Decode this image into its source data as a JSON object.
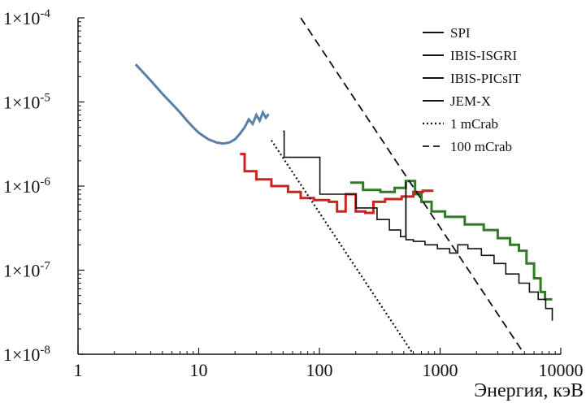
{
  "chart_data": {
    "type": "line",
    "title": "",
    "xlabel": "Энергия, кэВ",
    "ylabel": "",
    "xscale": "log",
    "yscale": "log",
    "xlim": [
      1,
      10000
    ],
    "ylim": [
      1e-08,
      0.0001
    ],
    "x_ticks": [
      "1",
      "10",
      "100",
      "1000",
      "10000"
    ],
    "y_ticks": [
      {
        "mantissa": "1×10",
        "exp": "-8"
      },
      {
        "mantissa": "1×10",
        "exp": "-7"
      },
      {
        "mantissa": "1×10",
        "exp": "-6"
      },
      {
        "mantissa": "1×10",
        "exp": "-5"
      },
      {
        "mantissa": "1×10",
        "exp": "-4"
      }
    ],
    "legend_position": "top-right",
    "series": [
      {
        "name": "SPI",
        "color": "#2e7d22",
        "style": "step",
        "points": [
          [
            180,
            1.1e-06
          ],
          [
            230,
            9e-07
          ],
          [
            320,
            8.5e-07
          ],
          [
            420,
            9.5e-07
          ],
          [
            520,
            1.15e-06
          ],
          [
            620,
            8e-07
          ],
          [
            700,
            6.5e-07
          ],
          [
            850,
            5e-07
          ],
          [
            1100,
            4.3e-07
          ],
          [
            1600,
            3.5e-07
          ],
          [
            2300,
            3e-07
          ],
          [
            3000,
            2.4e-07
          ],
          [
            3800,
            2e-07
          ],
          [
            4500,
            1.7e-07
          ],
          [
            5200,
            1.2e-07
          ],
          [
            6000,
            8e-08
          ],
          [
            6800,
            5.5e-08
          ],
          [
            7400,
            4.5e-08
          ],
          [
            8500,
            4.5e-08
          ]
        ]
      },
      {
        "name": "IBIS-ISGRI",
        "color": "#cc2222",
        "style": "step",
        "points": [
          [
            22,
            2.4e-06
          ],
          [
            24,
            1.5e-06
          ],
          [
            30,
            1.2e-06
          ],
          [
            40,
            1e-06
          ],
          [
            55,
            8.5e-07
          ],
          [
            70,
            7.2e-07
          ],
          [
            90,
            6.8e-07
          ],
          [
            120,
            6.5e-07
          ],
          [
            140,
            5e-07
          ],
          [
            165,
            8e-07
          ],
          [
            200,
            5e-07
          ],
          [
            240,
            4.8e-07
          ],
          [
            280,
            6.5e-07
          ],
          [
            350,
            7e-07
          ],
          [
            480,
            7.5e-07
          ],
          [
            600,
            8.5e-07
          ],
          [
            720,
            8.8e-07
          ],
          [
            880,
            8.8e-07
          ]
        ]
      },
      {
        "name": "IBIS-PICsIT",
        "color": "#111111",
        "style": "step",
        "points": [
          [
            50,
            4.5e-06
          ],
          [
            51,
            2.2e-06
          ],
          [
            70,
            2.2e-06
          ],
          [
            100,
            2.2e-06
          ],
          [
            101,
            8e-07
          ],
          [
            140,
            8e-07
          ],
          [
            200,
            8e-07
          ],
          [
            201,
            5.5e-07
          ],
          [
            300,
            4e-07
          ],
          [
            380,
            3e-07
          ],
          [
            470,
            2.5e-07
          ],
          [
            520,
            1.1e-06
          ],
          [
            521,
            2.3e-07
          ],
          [
            600,
            2.2e-07
          ],
          [
            750,
            2e-07
          ],
          [
            950,
            1.8e-07
          ],
          [
            1200,
            1.6e-07
          ],
          [
            1400,
            2e-07
          ],
          [
            1700,
            1.8e-07
          ],
          [
            2200,
            1.5e-07
          ],
          [
            2800,
            1.2e-07
          ],
          [
            3500,
            9e-08
          ],
          [
            4500,
            7e-08
          ],
          [
            5500,
            5.5e-08
          ],
          [
            6500,
            4.5e-08
          ],
          [
            7500,
            3.5e-08
          ],
          [
            8500,
            2.5e-08
          ]
        ]
      },
      {
        "name": "JEM-X",
        "color": "#5b7fa6",
        "style": "curve",
        "points": [
          [
            3,
            2.8e-05
          ],
          [
            4,
            1.8e-05
          ],
          [
            5,
            1.25e-05
          ],
          [
            6,
            9.5e-06
          ],
          [
            7,
            7.5e-06
          ],
          [
            8,
            6e-06
          ],
          [
            9,
            5e-06
          ],
          [
            10,
            4.3e-06
          ],
          [
            12,
            3.6e-06
          ],
          [
            14,
            3.3e-06
          ],
          [
            16,
            3.2e-06
          ],
          [
            18,
            3.3e-06
          ],
          [
            20,
            3.6e-06
          ],
          [
            22,
            4.2e-06
          ],
          [
            24,
            5e-06
          ],
          [
            26,
            6.2e-06
          ],
          [
            28,
            5.5e-06
          ],
          [
            30,
            7e-06
          ],
          [
            32,
            6e-06
          ],
          [
            34,
            7.5e-06
          ],
          [
            36,
            6.5e-06
          ],
          [
            38,
            7.2e-06
          ]
        ]
      },
      {
        "name": "1 mCrab",
        "color": "#111111",
        "style": "dotted",
        "points": [
          [
            40,
            3.5e-06
          ],
          [
            600,
            1e-08
          ]
        ]
      },
      {
        "name": "100 mCrab",
        "color": "#111111",
        "style": "dashed",
        "points": [
          [
            70,
            0.0001
          ],
          [
            5000,
            1e-08
          ]
        ]
      }
    ]
  }
}
